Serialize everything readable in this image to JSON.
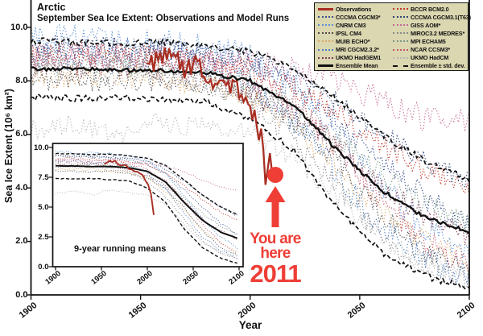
{
  "header": {
    "title": "Arctic",
    "subtitle": "September Sea Ice Extent: Observations and Model Runs"
  },
  "annotation": {
    "line1": "You are",
    "line2": "here",
    "year": "2011",
    "color": "#ee3e36",
    "marker": "person-arrow-up"
  },
  "legend": {
    "background": "#dbd7b0",
    "columns": [
      [
        {
          "label": "Observations",
          "color": "#a82e22",
          "style": "solid",
          "thick": true
        },
        {
          "label": "CCCMA CGCM3*",
          "color": "#3a4f8e",
          "style": "dotted"
        },
        {
          "label": "CNRM CM3",
          "color": "#5b8ed6",
          "style": "dotted"
        },
        {
          "label": "IPSL CM4",
          "color": "#4a4a4a",
          "style": "dotted"
        },
        {
          "label": "MUIB ECHO*",
          "color": "#dba86a",
          "style": "dotted"
        },
        {
          "label": "MRI CGCM2.3.2*",
          "color": "#4d7dbf",
          "style": "dotted"
        },
        {
          "label": "UKMO HadGEM1",
          "color": "#7e3a52",
          "style": "dotted"
        },
        {
          "label": "Ensemble Mean",
          "color": "#111111",
          "style": "solid",
          "thick": true
        }
      ],
      [
        {
          "label": "BCCR BCM2.0",
          "color": "#c0392b",
          "style": "dotted"
        },
        {
          "label": "CCCMA CGCM3.1(T63)",
          "color": "#2e4372",
          "style": "dotted"
        },
        {
          "label": "GISS AOM*",
          "color": "#c46a96",
          "style": "dotted"
        },
        {
          "label": "MIROC3.2 MEDRES*",
          "color": "#8a8a8a",
          "style": "dotted"
        },
        {
          "label": "MPI ECHAM5",
          "color": "#7f9a8a",
          "style": "dotted"
        },
        {
          "label": "NCAR CCSM3*",
          "color": "#c2566b",
          "style": "dotted"
        },
        {
          "label": "UKMO HadCM",
          "color": "#b8b8b8",
          "style": "dotted"
        },
        {
          "label": "Ensemble ± std. dev.",
          "color": "#111111",
          "style": "dashed"
        }
      ]
    ]
  },
  "chart_data": {
    "type": "line",
    "title": "Arctic",
    "subtitle": "September Sea Ice Extent: Observations and Model Runs",
    "xlabel": "Year",
    "ylabel": "Sea Ice Extent (10⁶ km²)",
    "xlim": [
      1900,
      2100
    ],
    "ylim": [
      0,
      11
    ],
    "grid": false,
    "legend_position": "top-right",
    "x_ticks": [
      {
        "value": 1900,
        "label": "1900"
      },
      {
        "value": 1950,
        "label": "1950"
      },
      {
        "value": 2000,
        "label": "2000"
      },
      {
        "value": 2050,
        "label": "2050"
      },
      {
        "value": 2100,
        "label": "2100"
      }
    ],
    "y_ticks": [
      {
        "value": 10,
        "label": "10.0"
      },
      {
        "value": 8,
        "label": "8.0"
      },
      {
        "value": 6,
        "label": "6.0"
      },
      {
        "value": 4,
        "label": "4.0"
      },
      {
        "value": 2,
        "label": "2.0"
      },
      {
        "value": 0,
        "label": "0.0"
      }
    ],
    "model_years": [
      1900,
      1920,
      1940,
      1960,
      1980,
      2000,
      2020,
      2040,
      2060,
      2080,
      2100
    ],
    "series": [
      {
        "name": "CCCMA CGCM3*",
        "color": "#3a4f8e",
        "style": "dotted",
        "width": 1.1,
        "noise": 0.45,
        "seed": 11,
        "values": [
          9.3,
          9.25,
          9.2,
          9.15,
          9.0,
          8.6,
          7.8,
          6.5,
          5.0,
          3.6,
          2.6
        ]
      },
      {
        "name": "CNRM CM3",
        "color": "#5b8ed6",
        "style": "dotted",
        "width": 1.1,
        "noise": 0.55,
        "seed": 22,
        "values": [
          9.65,
          9.55,
          9.5,
          9.45,
          9.25,
          8.85,
          7.8,
          6.0,
          4.0,
          2.5,
          1.5
        ]
      },
      {
        "name": "IPSL CM4",
        "color": "#4a4a4a",
        "style": "dotted",
        "width": 1.1,
        "noise": 0.4,
        "seed": 33,
        "values": [
          8.0,
          8.0,
          7.95,
          8.0,
          7.8,
          7.5,
          6.5,
          5.0,
          3.0,
          1.6,
          0.9
        ]
      },
      {
        "name": "MUIB ECHO*",
        "color": "#dba86a",
        "style": "dotted",
        "width": 1.1,
        "noise": 0.45,
        "seed": 44,
        "values": [
          8.2,
          8.15,
          8.2,
          8.0,
          7.9,
          7.4,
          6.3,
          4.8,
          3.0,
          2.0,
          1.2
        ]
      },
      {
        "name": "MRI CGCM2.3.2*",
        "color": "#4d7dbf",
        "style": "dotted",
        "width": 1.1,
        "noise": 0.5,
        "seed": 55,
        "values": [
          8.8,
          8.9,
          8.7,
          8.8,
          8.5,
          7.9,
          6.5,
          4.5,
          2.5,
          1.3,
          0.7
        ]
      },
      {
        "name": "UKMO HadGEM1",
        "color": "#7e3a52",
        "style": "dotted",
        "width": 1.1,
        "noise": 0.45,
        "seed": 66,
        "values": [
          8.6,
          8.5,
          8.6,
          8.4,
          8.2,
          7.6,
          6.8,
          5.5,
          4.0,
          3.0,
          2.2
        ]
      },
      {
        "name": "BCCR BCM2.0",
        "color": "#c0392b",
        "style": "dotted",
        "width": 1.1,
        "noise": 0.45,
        "seed": 77,
        "values": [
          9.0,
          9.1,
          9.0,
          8.9,
          8.8,
          8.5,
          7.8,
          6.8,
          5.6,
          4.6,
          3.9
        ]
      },
      {
        "name": "CCCMA CGCM3.1(T63)",
        "color": "#2e4372",
        "style": "dotted",
        "width": 1.1,
        "noise": 0.4,
        "seed": 88,
        "values": [
          9.3,
          9.3,
          9.25,
          9.2,
          9.1,
          8.8,
          8.2,
          7.2,
          6.0,
          5.0,
          4.2
        ]
      },
      {
        "name": "GISS AOM*",
        "color": "#c46a96",
        "style": "dotted",
        "width": 1.1,
        "noise": 0.5,
        "seed": 99,
        "values": [
          9.0,
          9.0,
          8.9,
          9.0,
          8.8,
          8.7,
          8.4,
          8.0,
          7.3,
          6.6,
          6.5
        ]
      },
      {
        "name": "MIROC3.2 MEDRES*",
        "color": "#8a8a8a",
        "style": "dotted",
        "width": 1.1,
        "noise": 0.45,
        "seed": 110,
        "values": [
          8.4,
          8.3,
          8.4,
          8.2,
          8.0,
          7.2,
          5.8,
          4.0,
          2.2,
          1.1,
          0.6
        ]
      },
      {
        "name": "MPI ECHAM5",
        "color": "#7f9a8a",
        "style": "dotted",
        "width": 1.1,
        "noise": 0.45,
        "seed": 121,
        "values": [
          8.7,
          8.6,
          8.7,
          8.5,
          8.4,
          8.0,
          7.0,
          5.8,
          4.5,
          3.4,
          2.6
        ]
      },
      {
        "name": "NCAR CCSM3*",
        "color": "#c2566b",
        "style": "dotted",
        "width": 1.1,
        "noise": 0.5,
        "seed": 132,
        "values": [
          8.9,
          8.8,
          8.7,
          8.8,
          8.6,
          8.2,
          7.2,
          5.5,
          3.5,
          2.0,
          1.1
        ]
      },
      {
        "name": "UKMO HadCM",
        "color": "#b8b8b8",
        "style": "dotted",
        "width": 1.1,
        "noise": 0.4,
        "seed": 143,
        "values": [
          6.1,
          6.4,
          6.0,
          6.5,
          6.2,
          6.0,
          5.2,
          3.6,
          2.0,
          1.2,
          0.8
        ]
      },
      {
        "name": "Ensemble + std. dev.",
        "color": "#111111",
        "style": "dashed",
        "width": 1.7,
        "noise": 0.12,
        "seed": 154,
        "values": [
          9.5,
          9.45,
          9.4,
          9.45,
          9.3,
          9.1,
          8.5,
          7.3,
          6.0,
          5.0,
          4.3
        ]
      },
      {
        "name": "Ensemble - std. dev.",
        "color": "#111111",
        "style": "dashed",
        "width": 1.7,
        "noise": 0.12,
        "seed": 165,
        "values": [
          7.4,
          7.35,
          7.4,
          7.3,
          7.2,
          6.6,
          5.4,
          3.2,
          1.6,
          0.7,
          0.25
        ]
      },
      {
        "name": "Ensemble Mean",
        "color": "#111111",
        "style": "solid",
        "width": 2.4,
        "noise": 0.07,
        "seed": 176,
        "values": [
          8.45,
          8.45,
          8.4,
          8.4,
          8.3,
          8.0,
          7.1,
          5.4,
          3.9,
          2.9,
          2.35
        ]
      },
      {
        "name": "Observations",
        "color": "#a82e22",
        "style": "solid",
        "width": 2.3,
        "noise": 0.4,
        "seed": 187,
        "years": [
          1953,
          1958,
          1964,
          1970,
          1975,
          1980,
          1985,
          1990,
          1995,
          2000,
          2003,
          2005,
          2007,
          2009,
          2011
        ],
        "values": [
          8.6,
          8.8,
          8.9,
          8.4,
          8.6,
          8.2,
          8.0,
          7.9,
          7.6,
          7.0,
          6.4,
          5.9,
          4.35,
          5.1,
          4.65
        ],
        "inset_end_year": 2007
      }
    ],
    "inset": {
      "caption": "9-year running means",
      "x_ticks": [
        {
          "value": 1900,
          "label": "1900"
        },
        {
          "value": 1950,
          "label": "1950"
        },
        {
          "value": 2000,
          "label": "2000"
        },
        {
          "value": 2050,
          "label": "2050"
        },
        {
          "value": 2100,
          "label": "2100"
        }
      ],
      "y_ticks": [
        {
          "value": 10,
          "label": "10.0"
        },
        {
          "value": 7.5,
          "label": "7.5"
        },
        {
          "value": 5,
          "label": "5.0"
        },
        {
          "value": 2.5,
          "label": "2.5"
        },
        {
          "value": 0,
          "label": "0.0"
        }
      ],
      "xlim": [
        1900,
        2100
      ],
      "ylim": [
        0,
        10.3
      ]
    }
  }
}
